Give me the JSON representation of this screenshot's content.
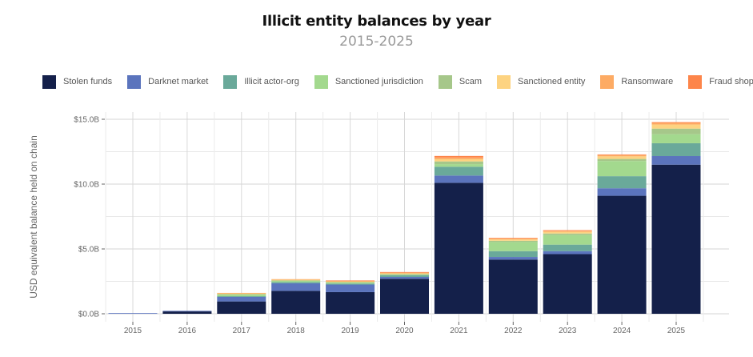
{
  "chart_data": {
    "type": "bar",
    "stacked": true,
    "title": "Illicit entity balances by year",
    "subtitle": "2015-2025",
    "xlabel": "",
    "ylabel": "USD equivalent balance held on chain",
    "ylim": [
      0,
      15.5
    ],
    "yticks": [
      0,
      5,
      10,
      15
    ],
    "ytick_labels": [
      "$0.0B",
      "$5.0B",
      "$10.0B",
      "$15.0B"
    ],
    "unit": "USD billions",
    "grid": true,
    "legend_position": "top",
    "categories": [
      "2015",
      "2016",
      "2017",
      "2018",
      "2019",
      "2020",
      "2021",
      "2022",
      "2023",
      "2024",
      "2025"
    ],
    "series": [
      {
        "name": "Stolen funds",
        "color": "#14204a",
        "values": [
          0.0,
          0.18,
          0.95,
          1.77,
          1.67,
          2.7,
          10.1,
          4.18,
          4.6,
          9.1,
          11.5
        ]
      },
      {
        "name": "Darknet market",
        "color": "#5b74bd",
        "values": [
          0.05,
          0.03,
          0.35,
          0.58,
          0.58,
          0.14,
          0.56,
          0.2,
          0.23,
          0.58,
          0.66
        ]
      },
      {
        "name": "Illicit actor-org",
        "color": "#6aa99a",
        "values": [
          0.0,
          0.0,
          0.06,
          0.1,
          0.08,
          0.14,
          0.68,
          0.45,
          0.5,
          0.93,
          0.99
        ]
      },
      {
        "name": "Sanctioned jurisdiction",
        "color": "#a3d98e",
        "values": [
          0.0,
          0.0,
          0.12,
          0.08,
          0.08,
          0.05,
          0.2,
          0.7,
          0.74,
          1.17,
          0.7
        ]
      },
      {
        "name": "Scam",
        "color": "#a6c78a",
        "values": [
          0.0,
          0.0,
          0.04,
          0.04,
          0.04,
          0.03,
          0.21,
          0.1,
          0.12,
          0.16,
          0.43
        ]
      },
      {
        "name": "Sanctioned entity",
        "color": "#fdd381",
        "values": [
          0.0,
          0.0,
          0.04,
          0.05,
          0.04,
          0.06,
          0.17,
          0.1,
          0.13,
          0.2,
          0.31
        ]
      },
      {
        "name": "Ransomware",
        "color": "#fdab64",
        "values": [
          0.0,
          0.0,
          0.01,
          0.03,
          0.03,
          0.05,
          0.13,
          0.07,
          0.08,
          0.1,
          0.13
        ]
      },
      {
        "name": "Fraud shop",
        "color": "#fd854a",
        "values": [
          0.0,
          0.0,
          0.0,
          0.0,
          0.01,
          0.03,
          0.12,
          0.03,
          0.04,
          0.04,
          0.06
        ]
      }
    ]
  }
}
